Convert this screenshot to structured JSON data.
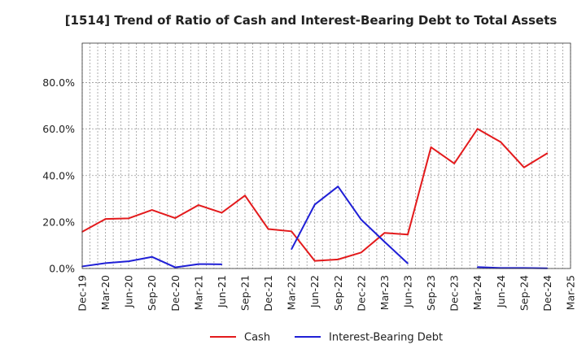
{
  "chart_data": {
    "type": "line",
    "title": "[1514]  Trend of Ratio of Cash and Interest-Bearing Debt to Total Assets",
    "xlabel": "",
    "ylabel": "",
    "categories": [
      "Dec-19",
      "Mar-20",
      "Jun-20",
      "Sep-20",
      "Dec-20",
      "Mar-21",
      "Jun-21",
      "Sep-21",
      "Dec-21",
      "Mar-22",
      "Jun-22",
      "Sep-22",
      "Dec-22",
      "Mar-23",
      "Jun-23",
      "Sep-23",
      "Dec-23",
      "Mar-24",
      "Jun-24",
      "Sep-24",
      "Dec-24",
      "Mar-25"
    ],
    "y_ticks": [
      0,
      20,
      40,
      60,
      80
    ],
    "y_tick_labels": [
      "0.0%",
      "20.0%",
      "40.0%",
      "60.0%",
      "80.0%"
    ],
    "ylim": [
      0,
      97
    ],
    "grid": true,
    "legend_position": "bottom-center",
    "series": [
      {
        "name": "Cash",
        "color": "#e31a1c",
        "values": [
          15.8,
          21.3,
          21.6,
          25.2,
          21.7,
          27.3,
          24.0,
          31.4,
          17.0,
          16.0,
          3.3,
          3.9,
          6.9,
          15.3,
          14.6,
          52.2,
          45.2,
          60.1,
          54.4,
          43.5,
          49.6,
          null
        ]
      },
      {
        "name": "Interest-Bearing Debt",
        "color": "#1f1fd6",
        "values": [
          0.9,
          2.3,
          3.1,
          5.0,
          0.5,
          1.9,
          1.8,
          null,
          null,
          8.3,
          27.5,
          35.3,
          21.0,
          11.5,
          2.2,
          null,
          null,
          0.6,
          0.2,
          0.2,
          0.1,
          null
        ]
      }
    ]
  }
}
